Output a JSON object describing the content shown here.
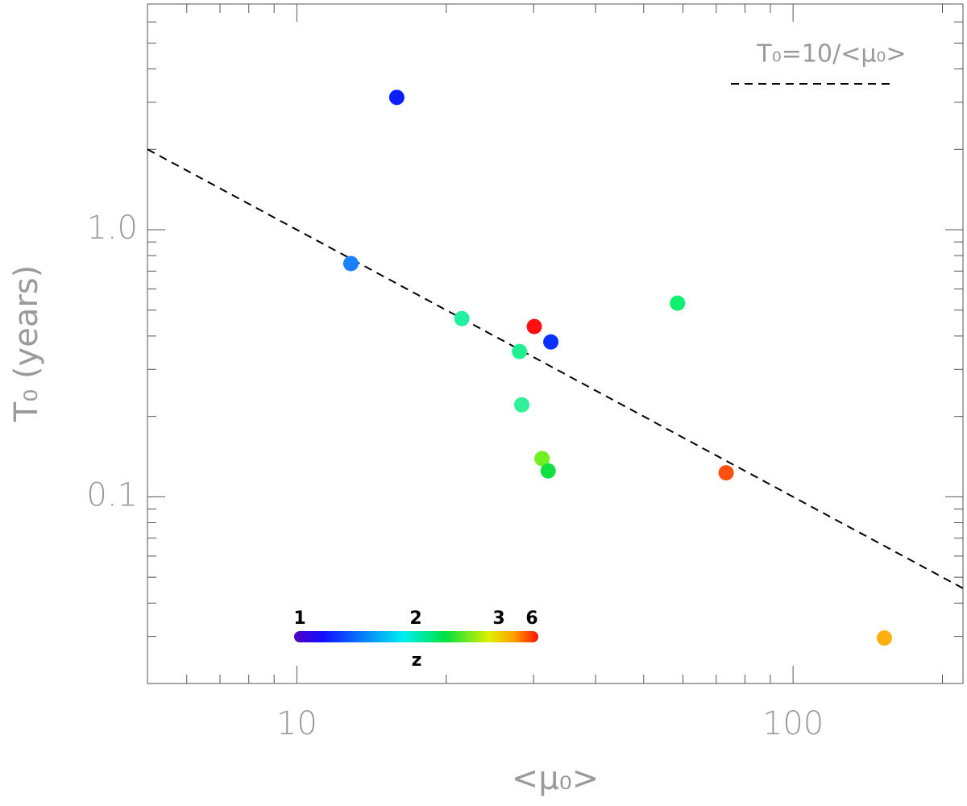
{
  "chart_data": {
    "type": "scatter",
    "x_label": "<μ₀>",
    "y_label": "T₀ (years)",
    "x": [
      15.9,
      12.85,
      21.5,
      30.1,
      32.5,
      28.1,
      58.5,
      28.4,
      31.2,
      32.1,
      73.3,
      152.8
    ],
    "values": [
      3.13,
      0.747,
      0.465,
      0.434,
      0.38,
      0.35,
      0.531,
      0.221,
      0.139,
      0.125,
      0.123,
      0.0296
    ],
    "colors": [
      "#0a1eff",
      "#1a80ff",
      "#20f0a0",
      "#ff1010",
      "#0a30ff",
      "#20f090",
      "#10f070",
      "#30f098",
      "#70f020",
      "#10e040",
      "#ff5010",
      "#ffb010"
    ],
    "xlim": [
      5,
      220
    ],
    "ylim": [
      0.02,
      7
    ],
    "x_log": true,
    "y_log": true,
    "xticks": [
      10,
      100
    ],
    "yticks": [
      0.1,
      {
        "value": 1,
        "label": "1.0"
      }
    ],
    "xminor_ticks": [
      5,
      6,
      7,
      8,
      9,
      20,
      30,
      40,
      50,
      60,
      70,
      80,
      90,
      200
    ],
    "yminor_ticks": [
      0.02,
      0.03,
      0.04,
      0.05,
      0.06,
      0.07,
      0.08,
      0.09,
      0.2,
      0.3,
      0.4,
      0.5,
      0.6,
      0.7,
      0.8,
      0.9,
      2,
      3,
      4,
      5,
      6,
      7
    ],
    "reference_line": {
      "label": "T₀=10/<μ₀>",
      "coefficient": 10
    },
    "colorbar": {
      "label": "z",
      "ticks": [
        1,
        2,
        3,
        6
      ]
    }
  }
}
